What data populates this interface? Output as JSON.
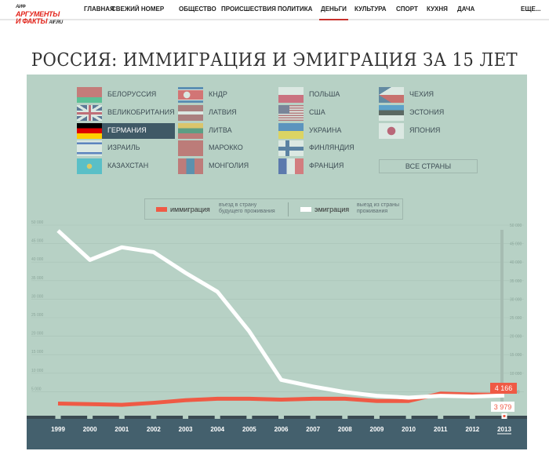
{
  "header": {
    "logo": "АРГУМЕНТЫ И ФАКТЫ AIF.RU",
    "nav": [
      "ГЛАВНАЯ",
      "СВЕЖИЙ НОМЕР",
      "ОБЩЕСТВО",
      "ПРОИСШЕСТВИЯ",
      "ПОЛИТИКА",
      "ДЕНЬГИ",
      "КУЛЬТУРА",
      "СПОРТ",
      "КУХНЯ",
      "ДАЧА"
    ],
    "active": "ДЕНЬГИ",
    "more": "ЕЩЕ..."
  },
  "countries": [
    {
      "label": "БЕЛОРУССИЯ",
      "flag": "belarus-flag-icon"
    },
    {
      "label": "ВЕЛИКОБРИТАНИЯ",
      "flag": "uk-flag-icon"
    },
    {
      "label": "ГЕРМАНИЯ",
      "flag": "germany-flag-icon",
      "selected": true
    },
    {
      "label": "ИЗРАИЛЬ",
      "flag": "israel-flag-icon"
    },
    {
      "label": "КАЗАХСТАН",
      "flag": "kazakhstan-flag-icon"
    },
    {
      "label": "КНДР",
      "flag": "north-korea-flag-icon"
    },
    {
      "label": "ЛАТВИЯ",
      "flag": "latvia-flag-icon"
    },
    {
      "label": "ЛИТВА",
      "flag": "lithuania-flag-icon"
    },
    {
      "label": "МАРОККО",
      "flag": "morocco-flag-icon"
    },
    {
      "label": "МОНГОЛИЯ",
      "flag": "mongolia-flag-icon"
    },
    {
      "label": "ПОЛЬША",
      "flag": "poland-flag-icon"
    },
    {
      "label": "США",
      "flag": "usa-flag-icon"
    },
    {
      "label": "УКРАИНА",
      "flag": "ukraine-flag-icon"
    },
    {
      "label": "ФИНЛЯНДИЯ",
      "flag": "finland-flag-icon"
    },
    {
      "label": "ФРАНЦИЯ",
      "flag": "france-flag-icon"
    },
    {
      "label": "ЧЕХИЯ",
      "flag": "czech-flag-icon"
    },
    {
      "label": "ЭСТОНИЯ",
      "flag": "estonia-flag-icon"
    },
    {
      "label": "ЯПОНИЯ",
      "flag": "japan-flag-icon"
    }
  ],
  "all_countries": "ВСЕ СТРАНЫ",
  "legend": {
    "imm": "иммиграция",
    "imm_desc1": "въезд в страну",
    "imm_desc2": "будущего проживания",
    "emi": "эмиграция",
    "emi_desc1": "выезд из страны",
    "emi_desc2": "проживания"
  },
  "chart_data": {
    "type": "line",
    "title": "РОССИЯ: ИММИГРАЦИЯ И ЭМИГРАЦИЯ ЗА 15 ЛЕТ",
    "x": [
      1999,
      2000,
      2001,
      2002,
      2003,
      2004,
      2005,
      2006,
      2007,
      2008,
      2009,
      2010,
      2011,
      2012,
      2013
    ],
    "ylim": [
      0,
      50000
    ],
    "yticks": [
      "50 000",
      "45 000",
      "40 000",
      "35 000",
      "30 000",
      "25 000",
      "20 000",
      "15 000",
      "10 000",
      "5 000"
    ],
    "series": [
      {
        "name": "иммиграция",
        "color": "#ef5a45",
        "values": [
          1800,
          1650,
          1450,
          2000,
          2700,
          3100,
          3100,
          2850,
          3100,
          3100,
          2500,
          2500,
          4500,
          4250,
          4166
        ]
      },
      {
        "name": "эмиграция",
        "color": "#ffffff",
        "values": [
          48500,
          40600,
          44000,
          42700,
          37100,
          32000,
          21300,
          8200,
          6400,
          4900,
          3900,
          3400,
          3900,
          3700,
          3979
        ]
      }
    ],
    "annotations": {
      "imm_last": "4 166",
      "emi_last": "3 979"
    },
    "selected_year": 2013,
    "grid": true
  }
}
